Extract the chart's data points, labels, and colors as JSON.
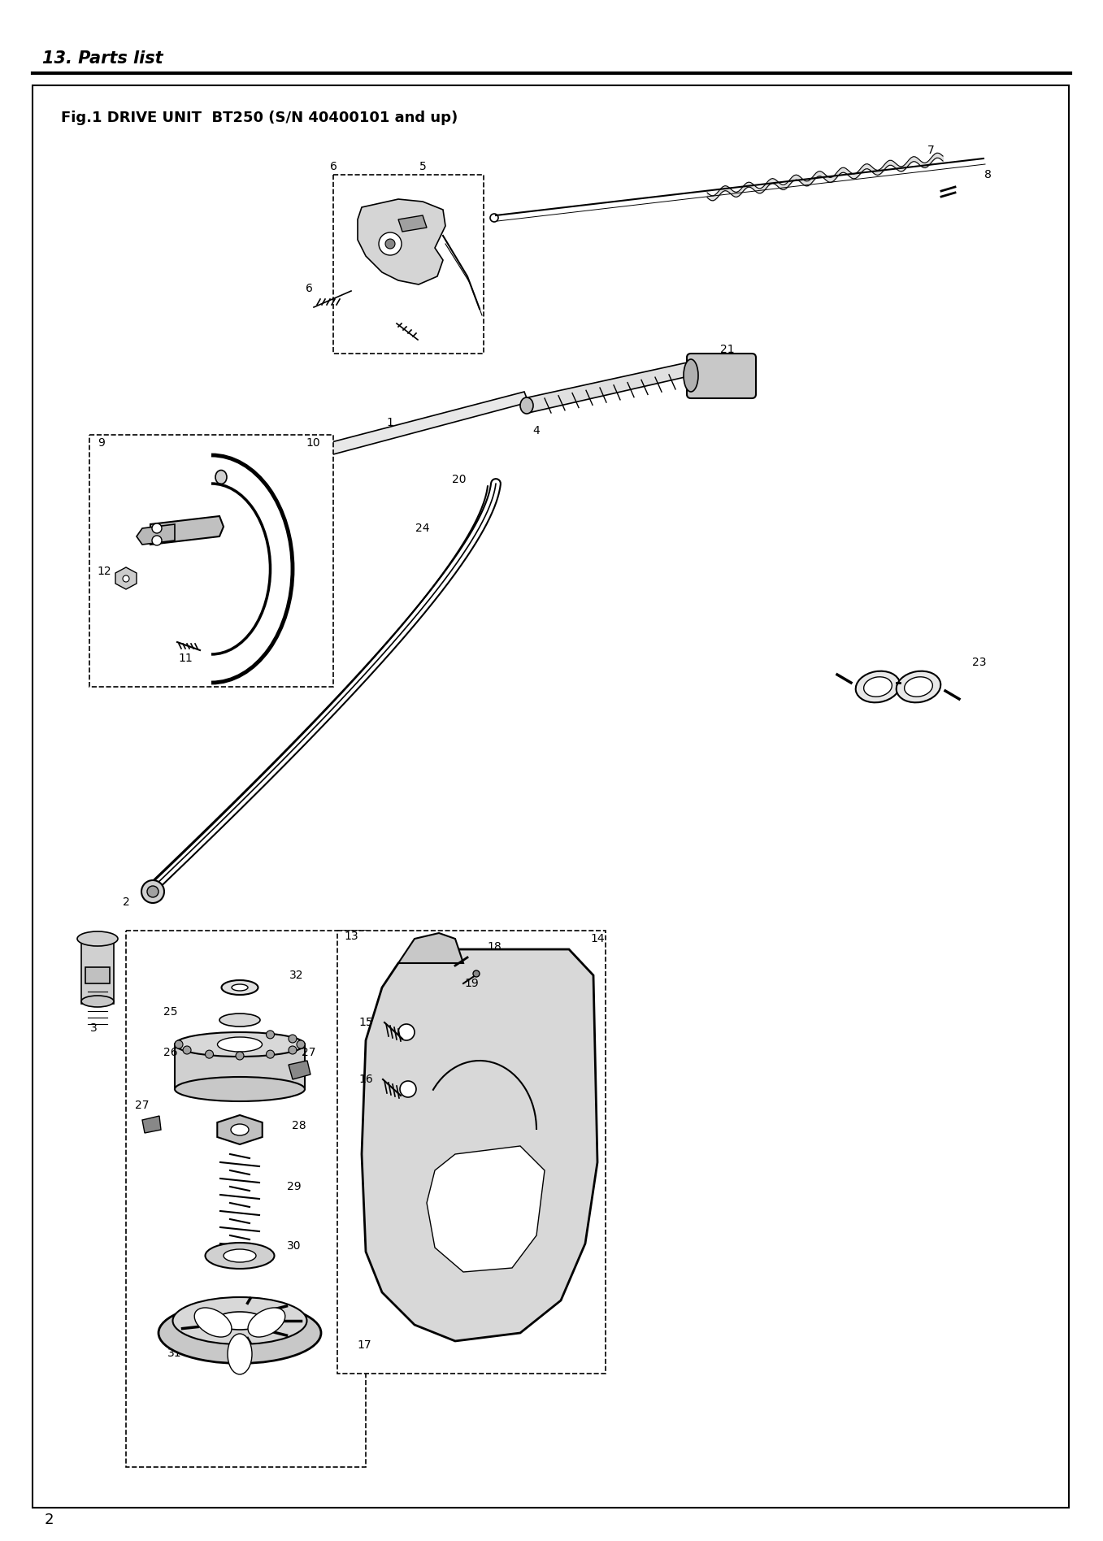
{
  "title": "13. Parts list",
  "fig_title": "Fig.1 DRIVE UNIT  BT250 (S/N 40400101 and up)",
  "page_number": "2",
  "bg_color": "#ffffff",
  "border_color": "#000000",
  "title_fontsize": 15,
  "fig_title_fontsize": 13
}
